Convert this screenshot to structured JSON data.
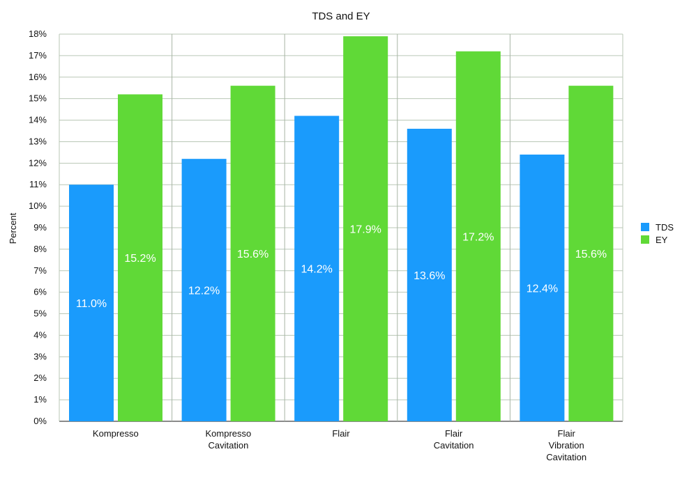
{
  "chart_data": {
    "type": "bar",
    "title": "TDS and EY",
    "ylabel": "Percent",
    "xlabel": "",
    "ylim": [
      0,
      18
    ],
    "ytick_step": 1,
    "ytick_suffix": "%",
    "grid": true,
    "legend_position": "right",
    "categories": [
      [
        "Kompresso"
      ],
      [
        "Kompresso",
        "Cavitation"
      ],
      [
        "Flair"
      ],
      [
        "Flair",
        "Cavitation"
      ],
      [
        "Flair",
        "Vibration",
        "Cavitation"
      ]
    ],
    "series": [
      {
        "name": "TDS",
        "color": "#1a9bfc",
        "values": [
          11.0,
          12.2,
          14.2,
          13.6,
          12.4
        ],
        "labels": [
          "11.0%",
          "12.2%",
          "14.2%",
          "13.6%",
          "12.4%"
        ]
      },
      {
        "name": "EY",
        "color": "#60d937",
        "values": [
          15.2,
          15.6,
          17.9,
          17.2,
          15.6
        ],
        "labels": [
          "15.2%",
          "15.6%",
          "17.9%",
          "17.2%",
          "15.6%"
        ]
      }
    ]
  }
}
